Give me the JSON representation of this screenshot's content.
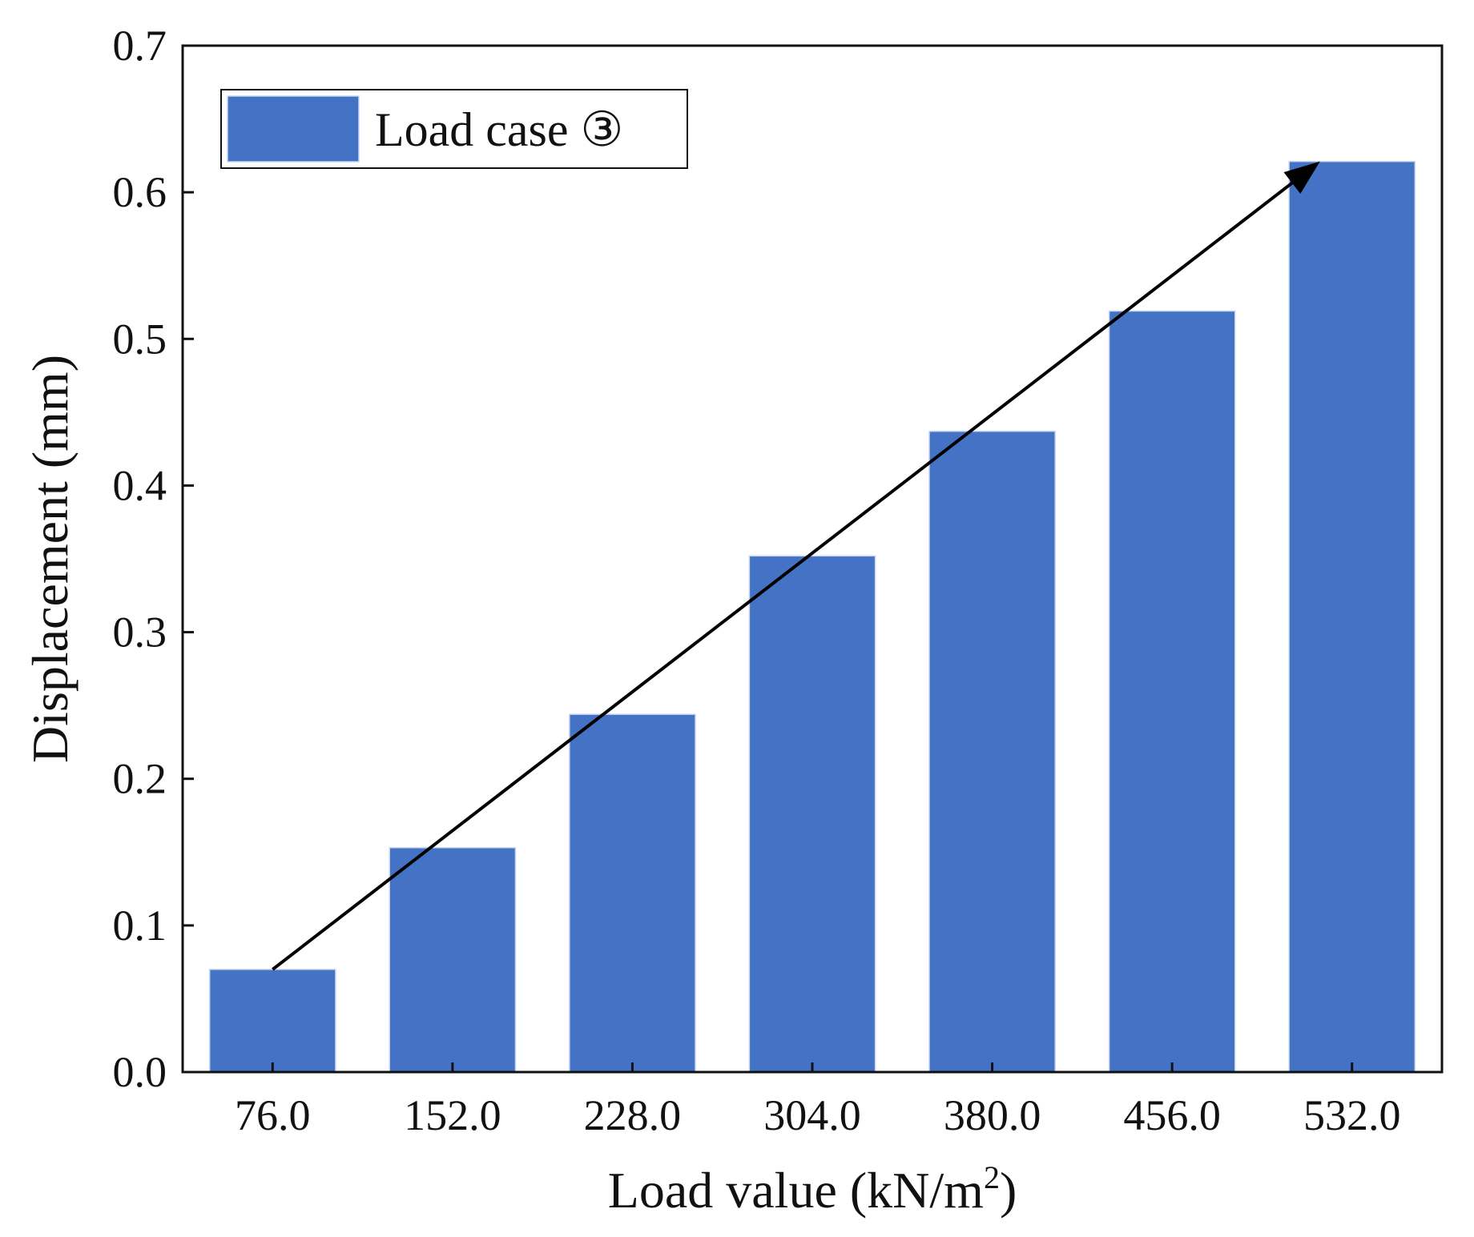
{
  "chart_data": {
    "type": "bar",
    "categories": [
      "76.0",
      "152.0",
      "228.0",
      "304.0",
      "380.0",
      "456.0",
      "532.0"
    ],
    "values": [
      0.07,
      0.153,
      0.244,
      0.352,
      0.437,
      0.519,
      0.621
    ],
    "series_name": "Load case ③",
    "ylabel": "Displacement (mm)",
    "xlabel_main": "Load value (kN/m",
    "xlabel_sup": "2",
    "xlabel_close": ")",
    "ylim": [
      0,
      0.7
    ],
    "yticks": [
      "0.0",
      "0.1",
      "0.2",
      "0.3",
      "0.4",
      "0.5",
      "0.6",
      "0.7"
    ],
    "bar_color": "#4472C4",
    "legend_position": "top-left",
    "trend_arrow": {
      "from_category": "76.0",
      "from_value": 0.07,
      "to_category": "532.0",
      "to_value": 0.621
    }
  }
}
